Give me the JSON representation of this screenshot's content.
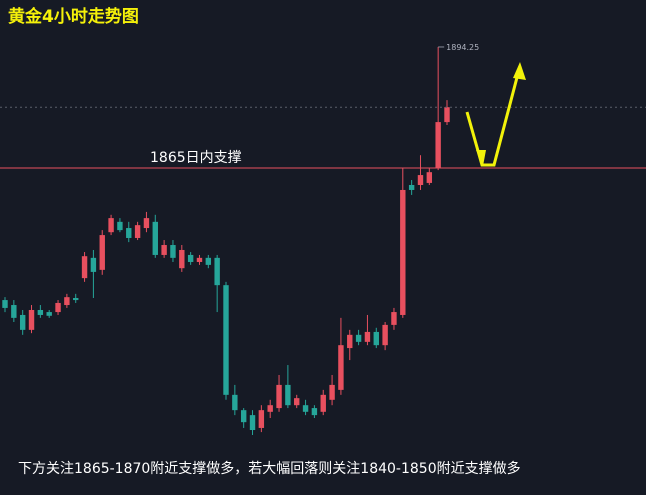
{
  "chart_data": {
    "type": "candlestick",
    "title": "黄金4小时走势图",
    "footer": "下方关注1865-1870附近支撑做多，若大幅回落则关注1840-1850附近支撑做多",
    "open": [
      1833.1,
      1831.9,
      1829.5,
      1825.9,
      1830.7,
      1830.2,
      1830.2,
      1831.9,
      1833.6,
      1838.4,
      1843.3,
      1840.4,
      1849.5,
      1852.0,
      1850.5,
      1848.1,
      1850.5,
      1852.0,
      1844.0,
      1846.4,
      1840.8,
      1844.0,
      1842.3,
      1843.3,
      1843.3,
      1836.7,
      1810.2,
      1806.5,
      1805.3,
      1802.2,
      1806.1,
      1807.0,
      1812.6,
      1807.7,
      1807.7,
      1807.0,
      1806.1,
      1809.0,
      1811.4,
      1821.5,
      1824.7,
      1823.0,
      1825.4,
      1822.2,
      1827.1,
      1829.5,
      1860.9,
      1860.9,
      1861.4,
      1865.0,
      1876.1
    ],
    "high": [
      1833.8,
      1833.1,
      1830.7,
      1831.9,
      1831.9,
      1830.7,
      1833.1,
      1834.6,
      1834.6,
      1844.7,
      1845.2,
      1850.0,
      1853.7,
      1852.9,
      1852.0,
      1852.0,
      1854.4,
      1853.7,
      1847.6,
      1847.6,
      1846.4,
      1844.7,
      1844.0,
      1844.0,
      1844.0,
      1837.5,
      1812.6,
      1807.0,
      1806.5,
      1807.7,
      1809.0,
      1815.0,
      1817.4,
      1810.2,
      1809.0,
      1807.7,
      1811.4,
      1815.0,
      1828.8,
      1825.9,
      1825.9,
      1829.5,
      1826.4,
      1827.8,
      1831.2,
      1865.0,
      1862.1,
      1868.1,
      1865.0,
      1894.25,
      1881.4
    ],
    "low": [
      1830.2,
      1827.8,
      1824.7,
      1825.1,
      1828.8,
      1828.8,
      1829.5,
      1831.2,
      1832.4,
      1837.5,
      1833.6,
      1839.2,
      1848.8,
      1849.5,
      1847.1,
      1847.6,
      1849.5,
      1843.3,
      1843.3,
      1842.3,
      1839.9,
      1841.6,
      1841.6,
      1840.8,
      1830.2,
      1809.0,
      1805.3,
      1802.2,
      1800.5,
      1801.2,
      1804.6,
      1806.1,
      1807.0,
      1807.0,
      1805.3,
      1804.6,
      1805.3,
      1807.7,
      1810.2,
      1818.6,
      1822.2,
      1822.2,
      1821.5,
      1821.0,
      1825.9,
      1828.8,
      1858.5,
      1859.7,
      1860.9,
      1864.5,
      1875.4
    ],
    "close": [
      1831.2,
      1828.8,
      1825.9,
      1830.7,
      1829.5,
      1829.3,
      1832.4,
      1833.8,
      1833.1,
      1843.7,
      1839.9,
      1848.8,
      1852.9,
      1850.0,
      1848.1,
      1851.2,
      1852.9,
      1844.0,
      1846.4,
      1843.3,
      1845.2,
      1842.3,
      1843.3,
      1841.6,
      1836.7,
      1810.2,
      1806.5,
      1803.6,
      1801.7,
      1806.5,
      1807.7,
      1812.6,
      1807.7,
      1809.4,
      1806.1,
      1805.3,
      1810.2,
      1812.6,
      1822.2,
      1824.7,
      1823.0,
      1825.4,
      1822.2,
      1827.1,
      1830.2,
      1859.7,
      1859.7,
      1863.3,
      1864.0,
      1876.1,
      1879.7
    ],
    "up_color": "#e8505f",
    "down_color": "#26a69a",
    "ylim": [
      1786.0,
      1905.6
    ],
    "hline": {
      "value": 1865,
      "label": "1865日内支撑",
      "color": "#e8505f"
    }
  }
}
